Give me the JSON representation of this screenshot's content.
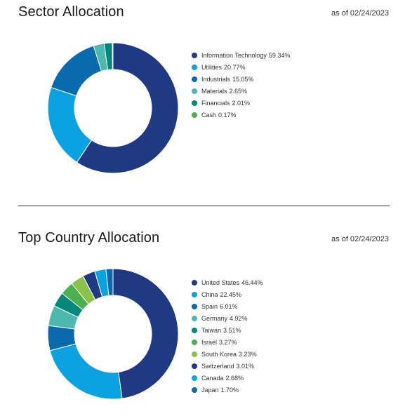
{
  "chart_data": [
    {
      "type": "pie",
      "title": "Sector Allocation",
      "subtitle": "as of 02/24/2023",
      "donut": true,
      "legend_position": "right",
      "unit": "%",
      "slices": [
        {
          "label": "Information Technology",
          "value": 59.34,
          "display": "59.34%",
          "color": "#1f3a83"
        },
        {
          "label": "Utilities",
          "value": 20.77,
          "display": "20.77%",
          "color": "#0aa2e0"
        },
        {
          "label": "Industrials",
          "value": 15.05,
          "display": "15.05%",
          "color": "#0b6aad"
        },
        {
          "label": "Materials",
          "value": 2.65,
          "display": "2.65%",
          "color": "#4db8ad"
        },
        {
          "label": "Financials",
          "value": 2.01,
          "display": "2.01%",
          "color": "#00897b"
        },
        {
          "label": "Cash",
          "value": 0.17,
          "display": "0.17%",
          "color": "#4caf50"
        }
      ]
    },
    {
      "type": "pie",
      "title": "Top Country Allocation",
      "subtitle": "as of 02/24/2023",
      "donut": true,
      "legend_position": "right",
      "unit": "%",
      "slices": [
        {
          "label": "United States",
          "value": 46.44,
          "display": "46.44%",
          "color": "#1f3a83"
        },
        {
          "label": "China",
          "value": 22.45,
          "display": "22.45%",
          "color": "#0aa2e0"
        },
        {
          "label": "Spain",
          "value": 6.01,
          "display": "6.01%",
          "color": "#0b6aad"
        },
        {
          "label": "Germany",
          "value": 4.92,
          "display": "4.92%",
          "color": "#4db8ad"
        },
        {
          "label": "Taiwan",
          "value": 3.51,
          "display": "3.51%",
          "color": "#00897b"
        },
        {
          "label": "Israel",
          "value": 3.27,
          "display": "3.27%",
          "color": "#4caf50"
        },
        {
          "label": "South Korea",
          "value": 3.23,
          "display": "3.23%",
          "color": "#8bc34a"
        },
        {
          "label": "Switzerland",
          "value": 3.01,
          "display": "3.01%",
          "color": "#1f3a83"
        },
        {
          "label": "Canada",
          "value": 2.68,
          "display": "2.68%",
          "color": "#0aa2e0"
        },
        {
          "label": "Japan",
          "value": 1.7,
          "display": "1.70%",
          "color": "#0b6aad"
        }
      ]
    }
  ]
}
